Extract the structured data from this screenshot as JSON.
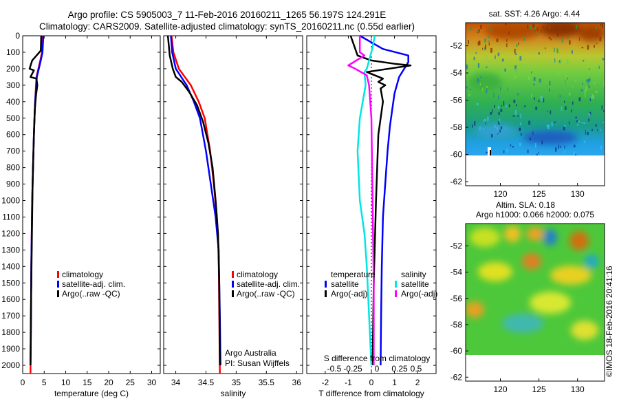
{
  "header": {
    "title_line1": "Argo profile: CS 5905003_7 11-Feb-2016 20160211_1265 56.197S 124.291E",
    "title_line2": "Climatology: CARS2009. Satellite-adjusted climatology: synTS_20160211.nc (0.55d earlier)"
  },
  "credits": {
    "org": "Argo Australia",
    "pi": "PI: Susan Wijffels",
    "imos": "©IMOS 18-Feb-2016 20:41:16"
  },
  "colors": {
    "climatology": "#ff0000",
    "satellite": "#0000ff",
    "argo": "#000000",
    "salinity_sat": "#00e5e5",
    "salinity_argo": "#ff00ff"
  },
  "chart_data": [
    {
      "type": "line",
      "panel": "temperature",
      "xlabel": "temperature (deg C)",
      "xlim": [
        0,
        32
      ],
      "xticks": [
        0,
        5,
        10,
        15,
        20,
        25,
        30
      ],
      "ylim": [
        0,
        2050
      ],
      "yticks": [
        0,
        100,
        200,
        300,
        400,
        500,
        600,
        700,
        800,
        900,
        1000,
        1100,
        1200,
        1300,
        1400,
        1500,
        1600,
        1700,
        1800,
        1900,
        2000
      ],
      "legend": [
        "climatology",
        "satellite-adj. clim.",
        "Argo(..raw -QC)"
      ],
      "series": [
        {
          "name": "climatology",
          "color": "#ff0000",
          "x": [
            4.6,
            4.5,
            4.1,
            3.2,
            2.9,
            2.6,
            2.4,
            2.2,
            2.0,
            1.9,
            1.8
          ],
          "y": [
            0,
            100,
            150,
            250,
            400,
            600,
            800,
            1000,
            1400,
            1800,
            2050
          ]
        },
        {
          "name": "satellite-adj. clim.",
          "color": "#0000ff",
          "x": [
            4.8,
            4.6,
            4.2,
            3.3,
            2.9,
            2.6,
            2.4,
            2.2,
            2.0,
            1.9,
            1.8
          ],
          "y": [
            0,
            100,
            150,
            250,
            400,
            600,
            800,
            1000,
            1400,
            1800,
            2000
          ]
        },
        {
          "name": "Argo(..raw -QC)",
          "color": "#000000",
          "x": [
            4.3,
            4.2,
            2.2,
            1.6,
            2.6,
            1.8,
            3.2,
            3.4,
            3.1,
            2.8,
            2.6,
            2.3,
            2.1,
            1.9,
            1.8
          ],
          "y": [
            0,
            90,
            150,
            200,
            210,
            250,
            260,
            300,
            360,
            450,
            600,
            900,
            1300,
            1700,
            2000
          ]
        }
      ]
    },
    {
      "type": "line",
      "panel": "salinity",
      "xlabel": "salinity",
      "xlim": [
        33.8,
        36.1
      ],
      "xticks": [
        34,
        34.5,
        35,
        35.5,
        36
      ],
      "ylim": [
        0,
        2050
      ],
      "legend": [
        "climatology",
        "satellite-adj. clim.",
        "Argo(..raw -QC)"
      ],
      "series": [
        {
          "name": "climatology",
          "color": "#ff0000",
          "x": [
            33.93,
            33.96,
            34.05,
            34.25,
            34.38,
            34.48,
            34.57,
            34.63,
            34.68,
            34.71,
            34.72,
            34.73
          ],
          "y": [
            0,
            100,
            200,
            300,
            400,
            500,
            700,
            900,
            1100,
            1300,
            1700,
            2050
          ]
        },
        {
          "name": "satellite-adj. clim.",
          "color": "#0000ff",
          "x": [
            33.92,
            33.94,
            34.0,
            34.18,
            34.3,
            34.4,
            34.5,
            34.58,
            34.66,
            34.71,
            34.73,
            34.74
          ],
          "y": [
            0,
            100,
            200,
            300,
            400,
            500,
            700,
            900,
            1100,
            1300,
            1700,
            2000
          ]
        },
        {
          "name": "Argo(..raw -QC)",
          "color": "#000000",
          "x": [
            33.87,
            33.9,
            33.95,
            34.0,
            34.1,
            34.22,
            34.35,
            34.45,
            34.54,
            34.61,
            34.66,
            34.7,
            34.72,
            34.73
          ],
          "y": [
            0,
            120,
            200,
            250,
            280,
            340,
            420,
            520,
            650,
            800,
            1000,
            1200,
            1500,
            2000
          ]
        }
      ]
    },
    {
      "type": "line",
      "panel": "difference",
      "xlabel": "T difference from climatology",
      "xlim": [
        -2.8,
        2.8
      ],
      "xticks": [
        -2,
        -1,
        0,
        1,
        2
      ],
      "x2label": "S difference from climatology",
      "x2ticks": [
        "-0.5",
        "-0.25",
        "0",
        "0.25",
        "0.5"
      ],
      "ylim": [
        0,
        2050
      ],
      "legend": {
        "temperature_header": "temperature",
        "salinity_header": "salinity",
        "entries": [
          "satellite",
          "Argo(-adj)",
          "satellite",
          "Argo(-adj)"
        ]
      },
      "series": [
        {
          "name": "temperature satellite",
          "color": "#0000ff",
          "x": [
            -0.5,
            0.5,
            1.6,
            1.6,
            1.2,
            1.0,
            0.9,
            0.8,
            0.7,
            0.6,
            0.5,
            0.45,
            0.42,
            0.4
          ],
          "y": [
            0,
            80,
            120,
            160,
            250,
            350,
            450,
            550,
            700,
            900,
            1100,
            1400,
            1700,
            2000
          ]
        },
        {
          "name": "temperature Argo(-adj)",
          "color": "#000000",
          "x": [
            -0.9,
            -0.6,
            0.0,
            1.0,
            1.7,
            -0.2,
            0.5,
            0.3,
            0.6,
            0.4,
            0.5,
            0.3,
            0.2,
            0.1,
            0.05
          ],
          "y": [
            0,
            120,
            150,
            170,
            180,
            220,
            260,
            280,
            300,
            320,
            400,
            600,
            1000,
            1500,
            2000
          ]
        },
        {
          "name": "salinity satellite",
          "color": "#00e5e5",
          "x": [
            0.15,
            0.0,
            -0.2,
            -0.3,
            -0.25,
            -0.5,
            -0.6,
            -0.5,
            -0.3,
            -0.2,
            -0.1,
            0.0
          ],
          "y": [
            0,
            100,
            200,
            220,
            300,
            500,
            700,
            1000,
            1200,
            1400,
            1700,
            2000
          ]
        },
        {
          "name": "salinity Argo(-adj)",
          "color": "#ff00ff",
          "x": [
            -0.5,
            -0.5,
            -0.3,
            -1.0,
            -0.7,
            -0.2,
            -0.1,
            0.0,
            0.05,
            0.1,
            0.1
          ],
          "y": [
            0,
            100,
            120,
            180,
            200,
            240,
            300,
            500,
            1000,
            1500,
            2000
          ]
        }
      ]
    },
    {
      "type": "heatmap",
      "panel": "sst_map",
      "title": "sat. SST: 4.26 Argo: 4.44",
      "xticks": [
        120,
        125,
        130
      ],
      "yticks": [
        -52,
        -54,
        -56,
        -58,
        -60,
        -62
      ],
      "xlim": [
        115.5,
        133.5
      ],
      "ylim": [
        -62.3,
        -50.3
      ]
    },
    {
      "type": "heatmap",
      "panel": "sla_map",
      "title_line1": "Altim. SLA: 0.18",
      "title_line2": "Argo h1000: 0.066 h2000: 0.075",
      "xticks": [
        120,
        125,
        130
      ],
      "yticks": [
        -52,
        -54,
        -56,
        -58,
        -60,
        -62
      ],
      "xlim": [
        115.5,
        133.5
      ],
      "ylim": [
        -62.3,
        -50.3
      ]
    }
  ]
}
